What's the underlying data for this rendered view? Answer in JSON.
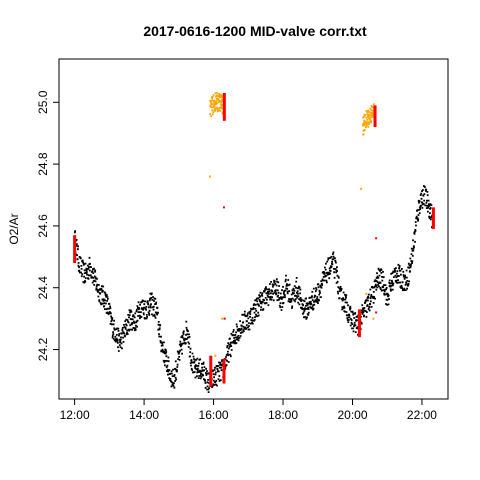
{
  "chart_data": {
    "type": "scatter",
    "title": "2017-0616-1200 MID-valve corr.txt",
    "xlabel": "",
    "ylabel": "O2/Ar",
    "x_unit": "hours",
    "xlim": [
      11.55,
      22.75
    ],
    "ylim": [
      24.04,
      25.14
    ],
    "x_ticks": [
      {
        "value": 12,
        "label": "12:00"
      },
      {
        "value": 14,
        "label": "14:00"
      },
      {
        "value": 16,
        "label": "16:00"
      },
      {
        "value": 18,
        "label": "18:00"
      },
      {
        "value": 20,
        "label": "20:00"
      },
      {
        "value": 22,
        "label": "22:00"
      }
    ],
    "y_ticks": [
      {
        "value": 24.2,
        "label": "24.2"
      },
      {
        "value": 24.4,
        "label": "24.4"
      },
      {
        "value": 24.6,
        "label": "24.6"
      },
      {
        "value": 24.8,
        "label": "24.8"
      },
      {
        "value": 25.0,
        "label": "25.0"
      }
    ],
    "grid": false,
    "series": [
      {
        "color": "#000000",
        "band": 0.035,
        "points": [
          [
            12.0,
            24.56
          ],
          [
            12.15,
            24.47
          ],
          [
            12.3,
            24.44
          ],
          [
            12.45,
            24.47
          ],
          [
            12.6,
            24.42
          ],
          [
            12.75,
            24.38
          ],
          [
            12.9,
            24.36
          ],
          [
            13.0,
            24.32
          ],
          [
            13.1,
            24.27
          ],
          [
            13.2,
            24.25
          ],
          [
            13.3,
            24.22
          ],
          [
            13.45,
            24.26
          ],
          [
            13.6,
            24.3
          ],
          [
            13.75,
            24.29
          ],
          [
            13.9,
            24.34
          ],
          [
            14.05,
            24.33
          ],
          [
            14.2,
            24.35
          ],
          [
            14.35,
            24.33
          ],
          [
            14.5,
            24.22
          ],
          [
            14.6,
            24.18
          ],
          [
            14.75,
            24.12
          ],
          [
            14.85,
            24.1
          ],
          [
            14.95,
            24.15
          ],
          [
            15.1,
            24.22
          ],
          [
            15.25,
            24.27
          ],
          [
            15.35,
            24.18
          ],
          [
            15.45,
            24.13
          ],
          [
            15.55,
            24.14
          ],
          [
            15.7,
            24.13
          ],
          [
            15.85,
            24.09
          ],
          [
            16.3,
            24.14
          ],
          [
            16.45,
            24.2
          ],
          [
            16.6,
            24.24
          ],
          [
            16.75,
            24.27
          ],
          [
            16.9,
            24.29
          ],
          [
            17.05,
            24.3
          ],
          [
            17.2,
            24.33
          ],
          [
            17.4,
            24.36
          ],
          [
            17.6,
            24.38
          ],
          [
            17.8,
            24.4
          ],
          [
            17.95,
            24.36
          ],
          [
            18.1,
            24.41
          ],
          [
            18.25,
            24.36
          ],
          [
            18.4,
            24.4
          ],
          [
            18.55,
            24.34
          ],
          [
            18.7,
            24.33
          ],
          [
            18.85,
            24.36
          ],
          [
            19.0,
            24.38
          ],
          [
            19.15,
            24.42
          ],
          [
            19.3,
            24.46
          ],
          [
            19.45,
            24.48
          ],
          [
            19.55,
            24.44
          ],
          [
            19.65,
            24.37
          ],
          [
            19.8,
            24.35
          ],
          [
            19.95,
            24.3
          ],
          [
            20.15,
            24.28
          ],
          [
            20.6,
            24.38
          ],
          [
            20.75,
            24.43
          ],
          [
            20.9,
            24.42
          ],
          [
            21.0,
            24.36
          ],
          [
            21.1,
            24.41
          ],
          [
            21.25,
            24.45
          ],
          [
            21.4,
            24.43
          ],
          [
            21.55,
            24.42
          ],
          [
            21.65,
            24.46
          ],
          [
            21.75,
            24.53
          ],
          [
            21.85,
            24.62
          ],
          [
            21.95,
            24.68
          ],
          [
            22.05,
            24.7
          ],
          [
            22.15,
            24.68
          ],
          [
            22.25,
            24.65
          ],
          [
            22.3,
            24.62
          ]
        ]
      },
      {
        "color": "#FFA500",
        "band": 0.03,
        "segments": [
          [
            [
              15.9,
              24.98
            ],
            [
              15.97,
              24.99
            ],
            [
              16.05,
              25.0
            ],
            [
              16.12,
              25.0
            ],
            [
              16.2,
              25.0
            ],
            [
              16.28,
              24.99
            ]
          ],
          [
            [
              20.3,
              24.92
            ],
            [
              20.38,
              24.94
            ],
            [
              20.45,
              24.95
            ],
            [
              20.53,
              24.96
            ],
            [
              20.6,
              24.97
            ],
            [
              20.65,
              24.96
            ]
          ]
        ],
        "outliers": [
          [
            15.9,
            24.76
          ],
          [
            16.05,
            24.18
          ],
          [
            16.25,
            24.3
          ],
          [
            20.25,
            24.72
          ],
          [
            20.4,
            24.38
          ],
          [
            20.6,
            24.3
          ]
        ]
      },
      {
        "color": "#FF0000",
        "vertical_bands": [
          {
            "x": 12.0,
            "y_min": 24.48,
            "y_max": 24.57
          },
          {
            "x": 15.92,
            "y_min": 24.08,
            "y_max": 24.18
          },
          {
            "x": 16.3,
            "y_min": 24.09,
            "y_max": 24.17
          },
          {
            "x": 16.31,
            "y_min": 24.94,
            "y_max": 25.03
          },
          {
            "x": 20.2,
            "y_min": 24.24,
            "y_max": 24.33
          },
          {
            "x": 20.65,
            "y_min": 24.92,
            "y_max": 24.99
          },
          {
            "x": 22.33,
            "y_min": 24.59,
            "y_max": 24.66
          }
        ],
        "outliers": [
          [
            16.3,
            24.66
          ],
          [
            20.68,
            24.56
          ],
          [
            20.68,
            24.32
          ],
          [
            16.32,
            24.3
          ]
        ]
      }
    ]
  }
}
